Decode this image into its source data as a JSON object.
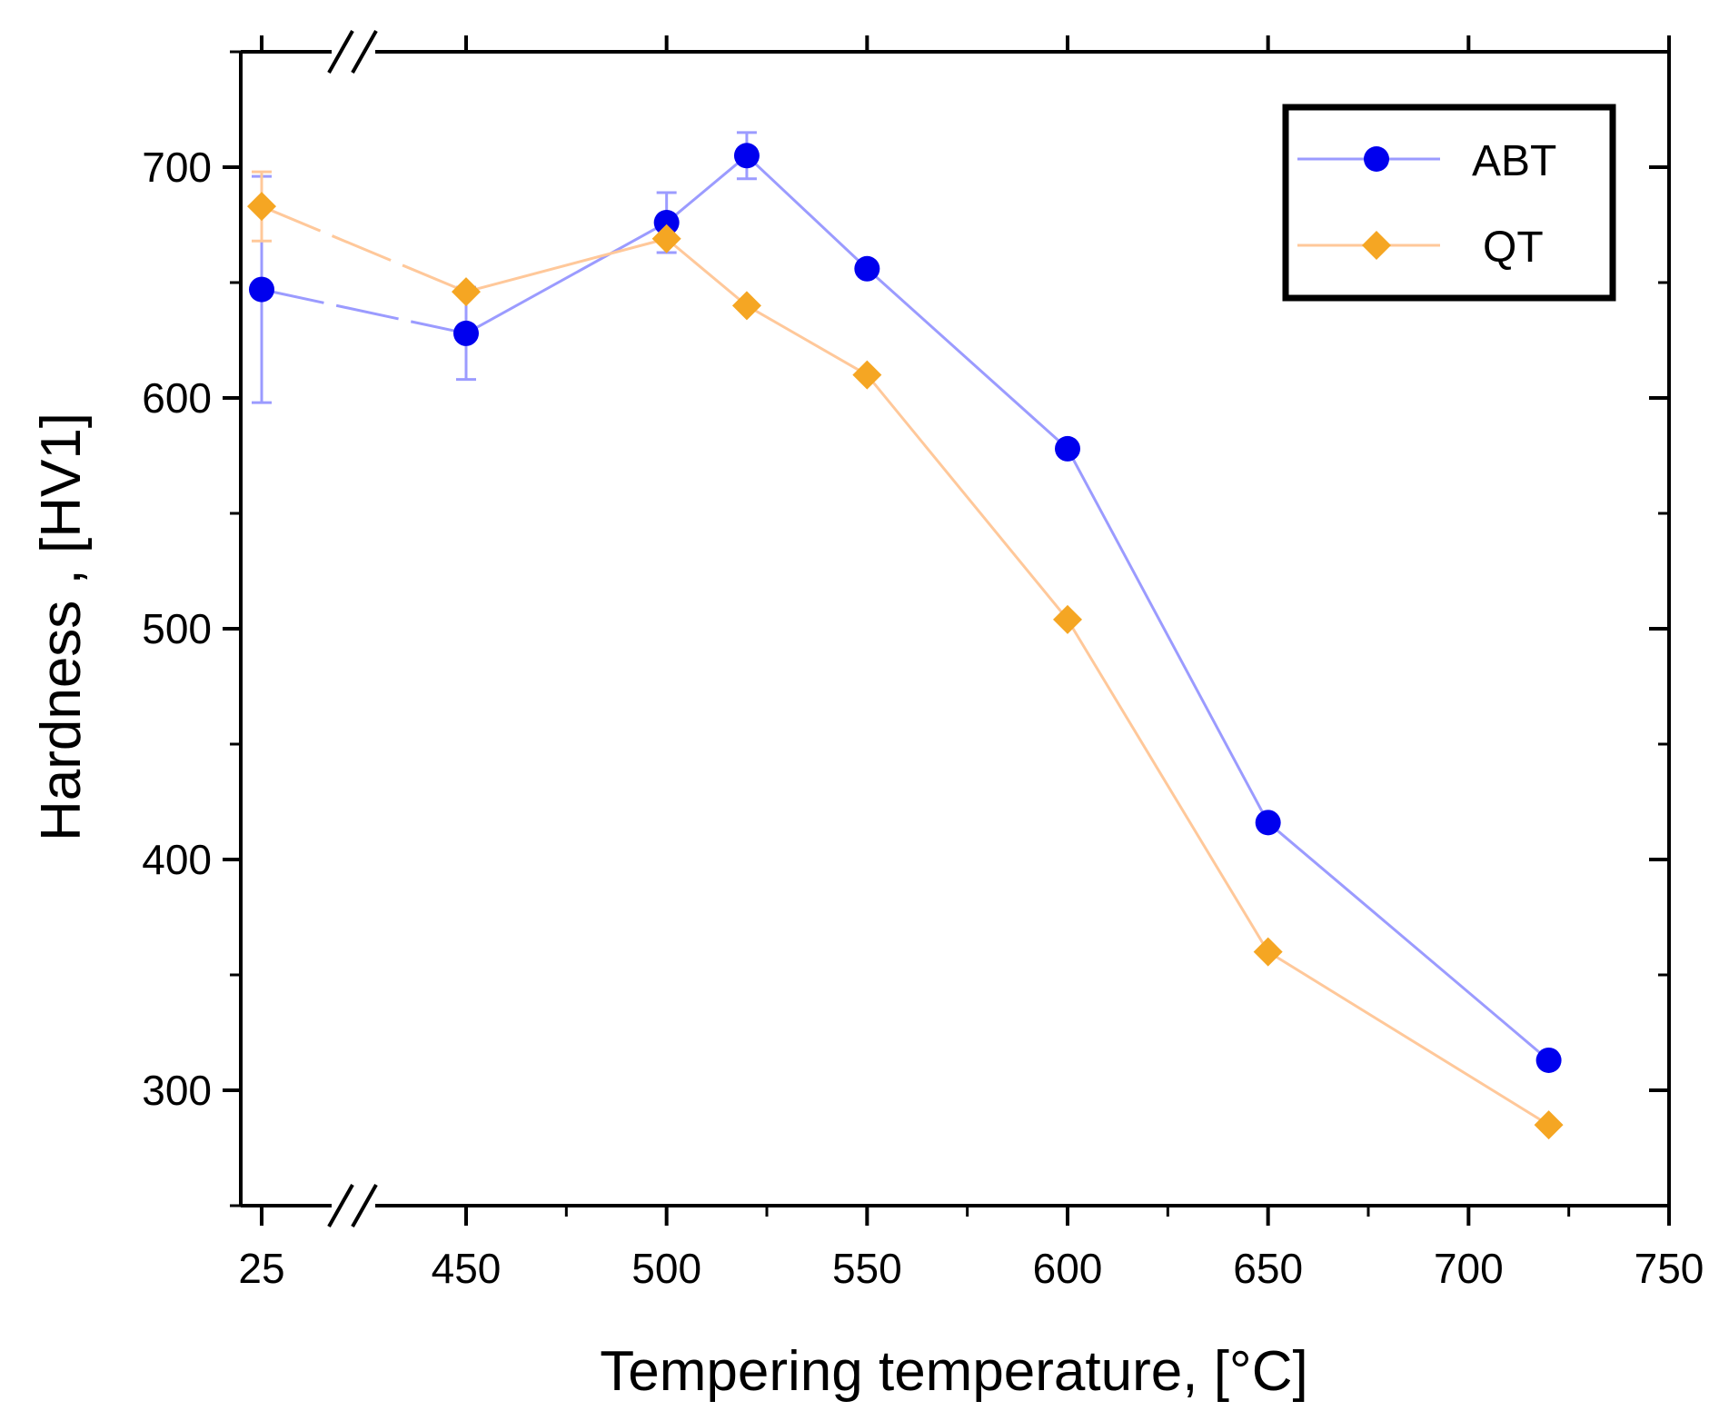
{
  "chart_data": {
    "type": "line",
    "title": "",
    "xlabel": "Tempering temperature, [°C]",
    "ylabel": "Hardness , [HV1]",
    "x_axis": {
      "break_after": 25,
      "break_before": 450,
      "ticks": [
        25,
        450,
        500,
        550,
        600,
        650,
        700,
        750
      ],
      "tick_labels": [
        "25",
        "450",
        "500",
        "550",
        "600",
        "650",
        "700",
        "750"
      ],
      "linear_range": [
        450,
        750
      ]
    },
    "y_axis": {
      "range": [
        250,
        750
      ],
      "ticks": [
        300,
        400,
        500,
        600,
        700
      ],
      "tick_labels": [
        "300",
        "400",
        "500",
        "600",
        "700"
      ],
      "minor_ticks": [
        250,
        350,
        450,
        550,
        650,
        750
      ],
      "break_marks": true
    },
    "grid": false,
    "legend_position": "top-right",
    "series": [
      {
        "name": "ABT",
        "marker": "circle",
        "color": "#0000ee",
        "line_color": "#9b9bff",
        "x": [
          25,
          450,
          500,
          520,
          550,
          600,
          650,
          720
        ],
        "y": [
          647,
          628,
          676,
          705,
          656,
          578,
          416,
          313
        ],
        "error": [
          49,
          20,
          13,
          10,
          0,
          0,
          0,
          0
        ]
      },
      {
        "name": "QT",
        "marker": "diamond",
        "color": "#f5a623",
        "line_color": "#ffc89a",
        "x": [
          25,
          450,
          500,
          520,
          550,
          600,
          650,
          720
        ],
        "y": [
          683,
          646,
          669,
          640,
          610,
          504,
          360,
          285
        ],
        "error": [
          15,
          0,
          0,
          0,
          0,
          0,
          0,
          0
        ]
      }
    ]
  }
}
